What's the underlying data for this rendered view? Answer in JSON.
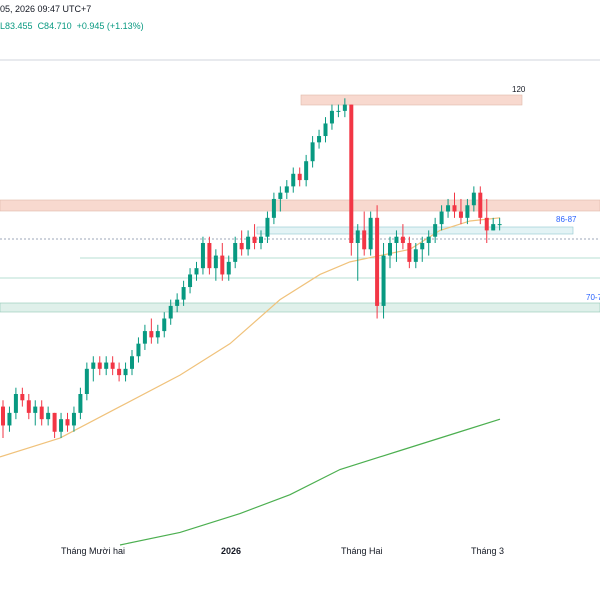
{
  "header": {
    "title_text": "05, 2026 09:47 UTC+7",
    "ohlc_low": "L83.455",
    "ohlc_close": "C84.710",
    "ohlc_change": "+0.945 (+1.13%)"
  },
  "colors": {
    "up": "#089981",
    "down": "#f23645",
    "ma_short": "#f0c27b",
    "ma_long": "#4caf50",
    "zone_resistance": "#f8d9cf",
    "zone_support": "#dff0ea",
    "zone_mid": "#e3f3f5"
  },
  "chart_data": {
    "type": "candlestick",
    "x_labels": [
      {
        "label": "Tháng Mười hai",
        "bold": false
      },
      {
        "label": "2026",
        "bold": true
      },
      {
        "label": "Tháng Hai",
        "bold": false
      },
      {
        "label": "Tháng 3",
        "bold": false
      }
    ],
    "ylim": [
      44,
      116
    ],
    "candles": [
      [
        66,
        67,
        61,
        63
      ],
      [
        63,
        66,
        62,
        65
      ],
      [
        65,
        69,
        64,
        68
      ],
      [
        68,
        69,
        66,
        67
      ],
      [
        67,
        68,
        64,
        65
      ],
      [
        65,
        67,
        63,
        66
      ],
      [
        66,
        67,
        63,
        64
      ],
      [
        64,
        66,
        63,
        65
      ],
      [
        65,
        65,
        61,
        62
      ],
      [
        62,
        65,
        61,
        64
      ],
      [
        64,
        65,
        62,
        63
      ],
      [
        63,
        66,
        62,
        65
      ],
      [
        65,
        69,
        64,
        68
      ],
      [
        68,
        73,
        67,
        72
      ],
      [
        72,
        74,
        70,
        73
      ],
      [
        73,
        74,
        71,
        72
      ],
      [
        72,
        74,
        71,
        73
      ],
      [
        73,
        74,
        71,
        72
      ],
      [
        72,
        73,
        70,
        71
      ],
      [
        71,
        73,
        70,
        72
      ],
      [
        72,
        75,
        71,
        74
      ],
      [
        74,
        77,
        73,
        76
      ],
      [
        76,
        79,
        75,
        78
      ],
      [
        78,
        80,
        76,
        77
      ],
      [
        77,
        79,
        76,
        78
      ],
      [
        78,
        81,
        77,
        80
      ],
      [
        80,
        83,
        79,
        82
      ],
      [
        82,
        84,
        81,
        83
      ],
      [
        83,
        86,
        82,
        85
      ],
      [
        85,
        88,
        84,
        87
      ],
      [
        87,
        89,
        86,
        88
      ],
      [
        88,
        93,
        87,
        92
      ],
      [
        92,
        93,
        87,
        88
      ],
      [
        88,
        91,
        86,
        90
      ],
      [
        90,
        92,
        86,
        87
      ],
      [
        87,
        90,
        86,
        89
      ],
      [
        89,
        93,
        88,
        92
      ],
      [
        92,
        94,
        90,
        91
      ],
      [
        91,
        94,
        90,
        93
      ],
      [
        93,
        95,
        91,
        92
      ],
      [
        92,
        94,
        91,
        93
      ],
      [
        93,
        97,
        92,
        96
      ],
      [
        96,
        100,
        95,
        99
      ],
      [
        99,
        101,
        97,
        100
      ],
      [
        100,
        102,
        99,
        101
      ],
      [
        101,
        104,
        100,
        103
      ],
      [
        103,
        104,
        101,
        102
      ],
      [
        102,
        106,
        101,
        105
      ],
      [
        105,
        109,
        104,
        108
      ],
      [
        108,
        110,
        107,
        109
      ],
      [
        109,
        112,
        108,
        111
      ],
      [
        111,
        114,
        110,
        113
      ],
      [
        113,
        114,
        112,
        113
      ],
      [
        113,
        115,
        112,
        114
      ],
      [
        114,
        114,
        90,
        92
      ],
      [
        92,
        95,
        86,
        94
      ],
      [
        94,
        97,
        90,
        91
      ],
      [
        91,
        97,
        90,
        96
      ],
      [
        96,
        98,
        80,
        82
      ],
      [
        82,
        92,
        80,
        90
      ],
      [
        90,
        93,
        88,
        92
      ],
      [
        92,
        94,
        89,
        93
      ],
      [
        93,
        95,
        91,
        92
      ],
      [
        92,
        93,
        88,
        89
      ],
      [
        89,
        92,
        88,
        91
      ],
      [
        91,
        93,
        89,
        92
      ],
      [
        92,
        94,
        90,
        93
      ],
      [
        93,
        96,
        92,
        95
      ],
      [
        95,
        98,
        94,
        97
      ],
      [
        97,
        99,
        96,
        98
      ],
      [
        98,
        100,
        96,
        97
      ],
      [
        97,
        99,
        95,
        96
      ],
      [
        96,
        99,
        95,
        98
      ],
      [
        98,
        101,
        97,
        100
      ],
      [
        100,
        101,
        95,
        96
      ],
      [
        96,
        99,
        92,
        94
      ],
      [
        94,
        96,
        94,
        95
      ],
      [
        95,
        96,
        94,
        95
      ]
    ],
    "ma_short": [
      [
        0,
        58
      ],
      [
        60,
        61
      ],
      [
        120,
        66
      ],
      [
        180,
        71
      ],
      [
        230,
        76
      ],
      [
        280,
        83
      ],
      [
        320,
        87
      ],
      [
        350,
        89
      ],
      [
        380,
        90
      ],
      [
        410,
        91
      ],
      [
        440,
        94
      ],
      [
        470,
        95.5
      ],
      [
        500,
        96
      ]
    ],
    "ma_long": [
      [
        120,
        44
      ],
      [
        180,
        46
      ],
      [
        240,
        49
      ],
      [
        290,
        52
      ],
      [
        340,
        56
      ],
      [
        400,
        59
      ],
      [
        460,
        62
      ],
      [
        500,
        64
      ]
    ],
    "annotations": {
      "level_120": "120",
      "level_86_87": "86-87",
      "level_70": "70-7"
    }
  }
}
